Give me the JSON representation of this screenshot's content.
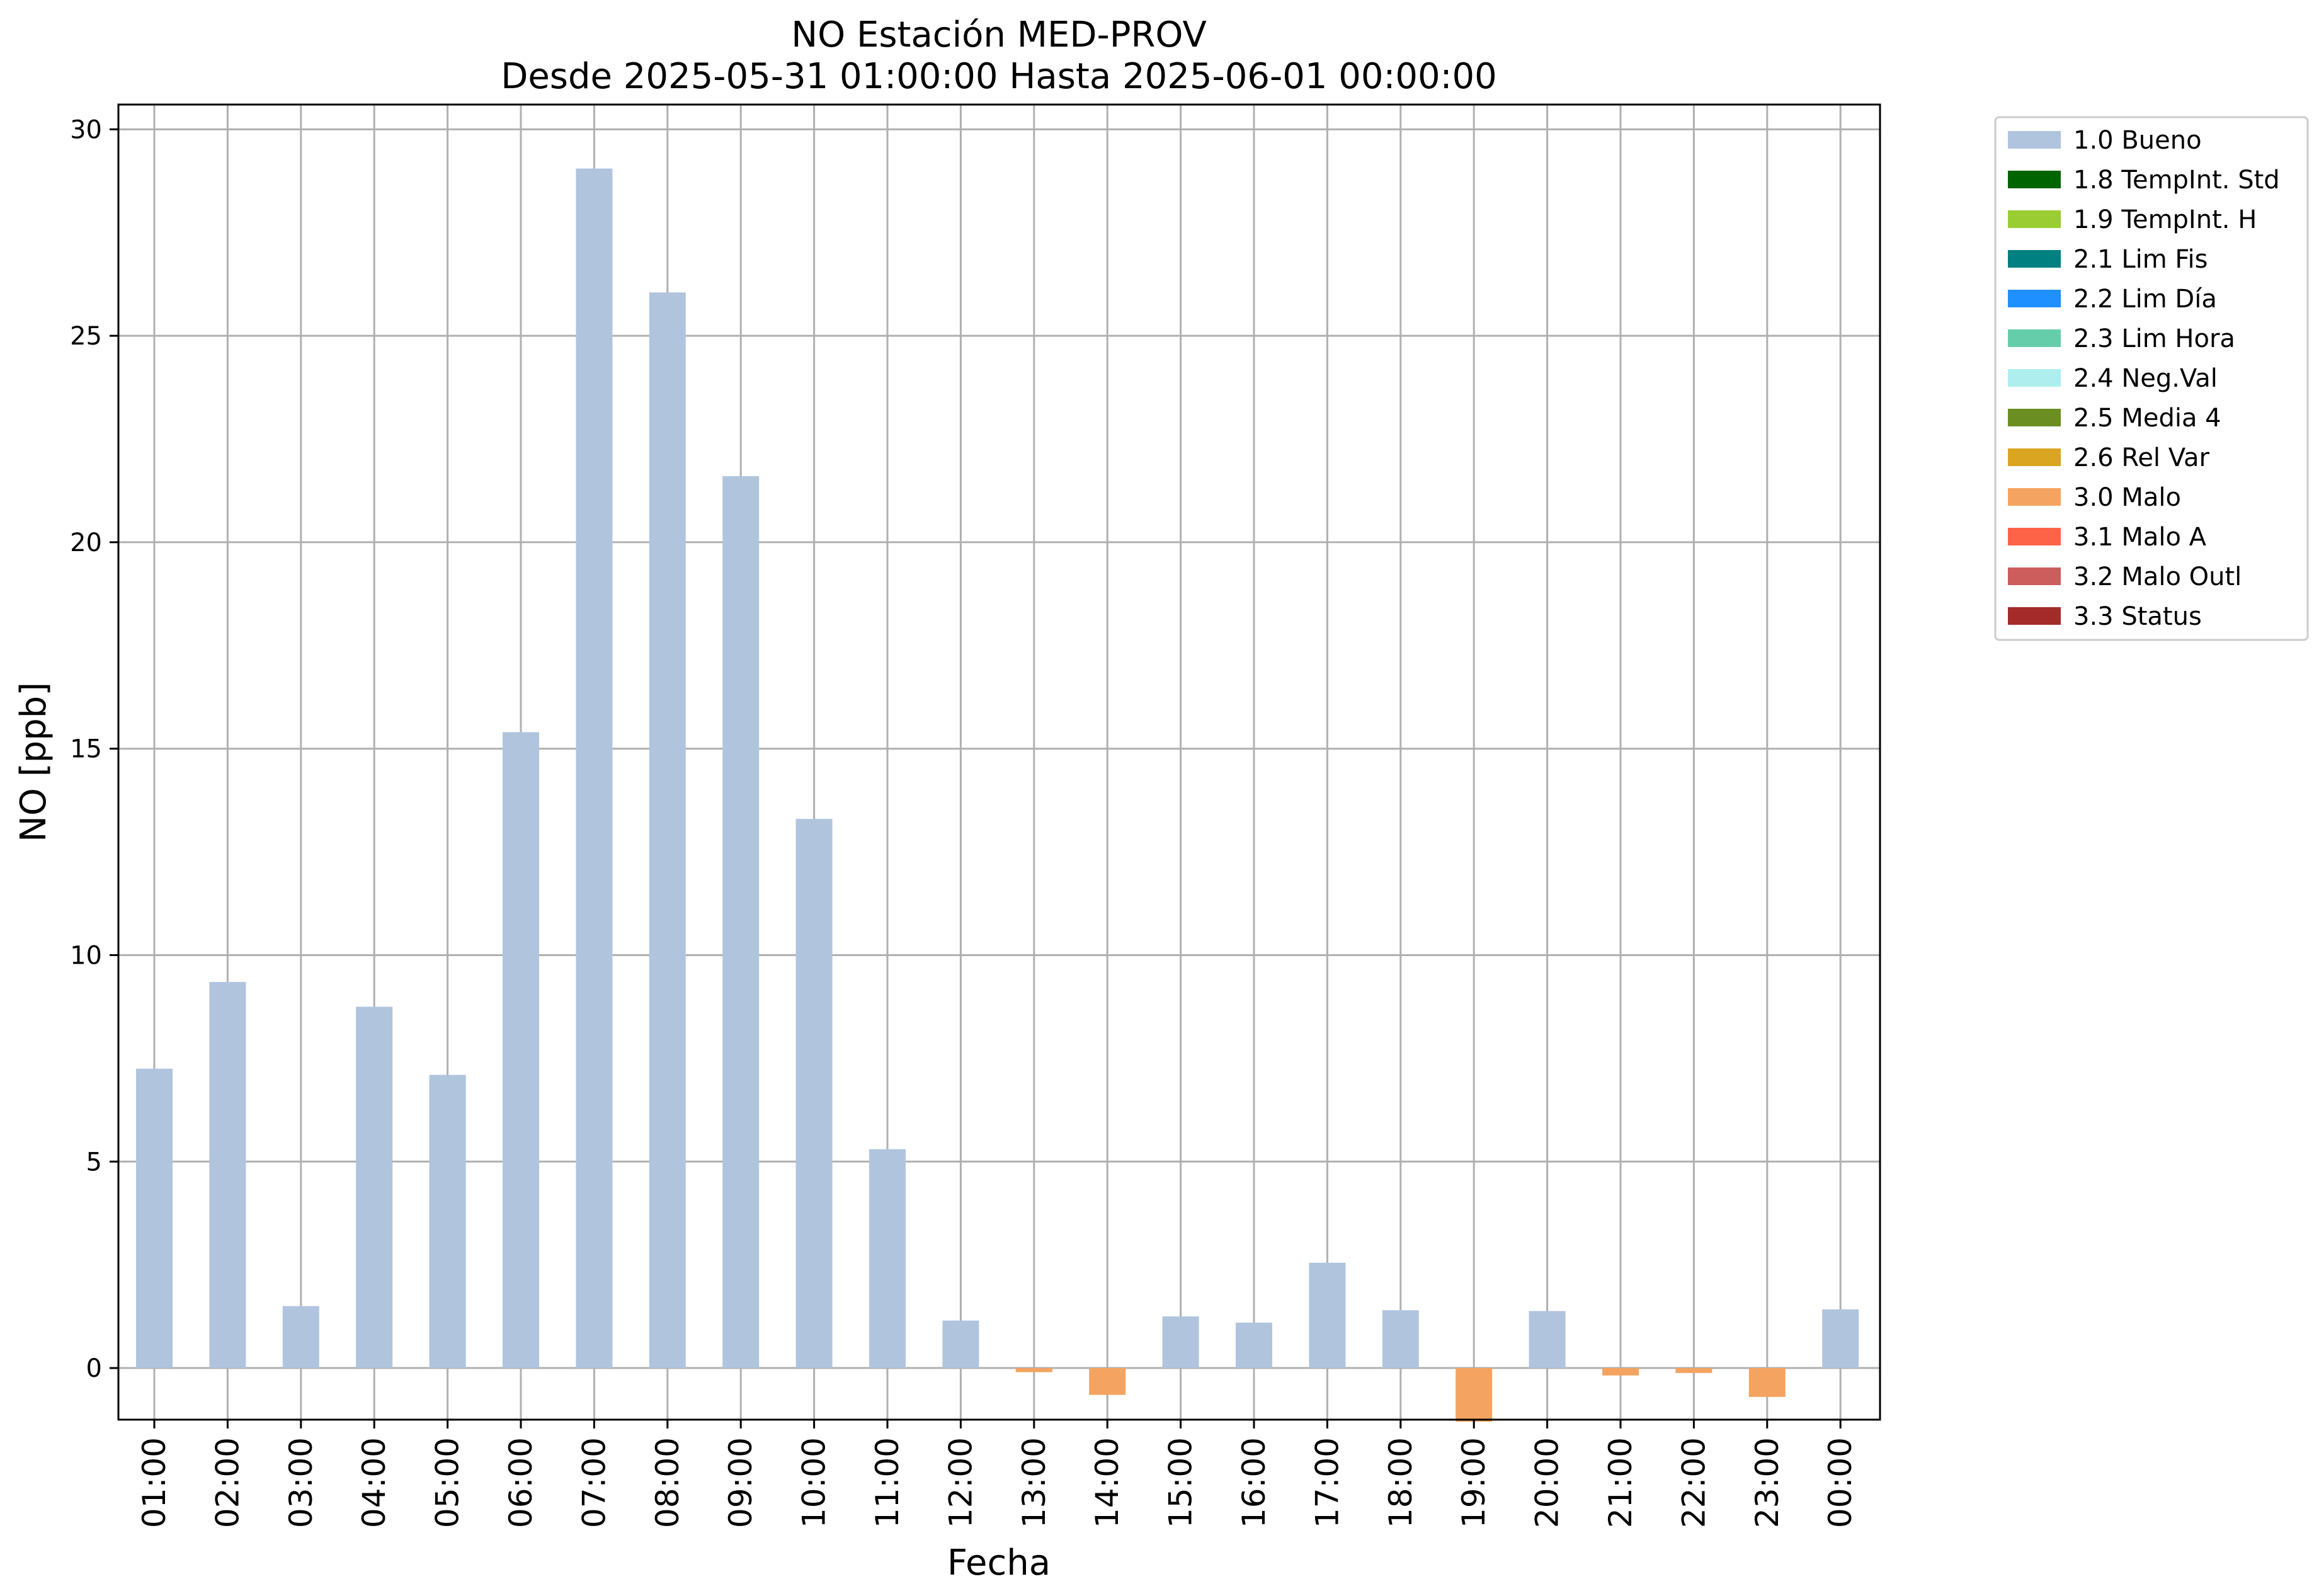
{
  "chart_data": {
    "type": "bar",
    "title": "NO Estación MED-PROV",
    "subtitle": "Desde 2025-05-31 01:00:00 Hasta 2025-06-01 00:00:00",
    "xlabel": "Fecha",
    "ylabel": "NO [ppb]",
    "ylim": [
      -1.25,
      30.6
    ],
    "yticks": [
      0,
      5,
      10,
      15,
      20,
      25,
      30
    ],
    "grid": true,
    "legend_position": "outside-right",
    "categories": [
      "01:00",
      "02:00",
      "03:00",
      "04:00",
      "05:00",
      "06:00",
      "07:00",
      "08:00",
      "09:00",
      "10:00",
      "11:00",
      "12:00",
      "13:00",
      "14:00",
      "15:00",
      "16:00",
      "17:00",
      "18:00",
      "19:00",
      "20:00",
      "21:00",
      "22:00",
      "23:00",
      "00:00"
    ],
    "values": [
      7.25,
      9.35,
      1.5,
      8.75,
      7.1,
      15.4,
      29.05,
      26.05,
      21.6,
      13.3,
      5.3,
      1.15,
      -0.1,
      -0.65,
      1.25,
      1.1,
      2.55,
      1.4,
      -1.3,
      1.38,
      -0.18,
      -0.12,
      -0.7,
      1.42
    ],
    "flags": [
      "1.0 Bueno",
      "1.0 Bueno",
      "1.0 Bueno",
      "1.0 Bueno",
      "1.0 Bueno",
      "1.0 Bueno",
      "1.0 Bueno",
      "1.0 Bueno",
      "1.0 Bueno",
      "1.0 Bueno",
      "1.0 Bueno",
      "1.0 Bueno",
      "3.0 Malo",
      "3.0 Malo",
      "1.0 Bueno",
      "1.0 Bueno",
      "1.0 Bueno",
      "1.0 Bueno",
      "3.0 Malo",
      "1.0 Bueno",
      "3.0 Malo",
      "3.0 Malo",
      "3.0 Malo",
      "1.0 Bueno"
    ],
    "legend": [
      {
        "label": "1.0 Bueno",
        "color": "#b0c4de"
      },
      {
        "label": "1.8 TempInt. Std",
        "color": "#006400"
      },
      {
        "label": "1.9 TempInt. H",
        "color": "#9acd32"
      },
      {
        "label": "2.1 Lim Fis",
        "color": "#008080"
      },
      {
        "label": "2.2 Lim Día",
        "color": "#1e90ff"
      },
      {
        "label": "2.3 Lim Hora",
        "color": "#66cdaa"
      },
      {
        "label": "2.4 Neg.Val",
        "color": "#afeeee"
      },
      {
        "label": "2.5 Media 4",
        "color": "#6b8e23"
      },
      {
        "label": "2.6 Rel Var",
        "color": "#daa520"
      },
      {
        "label": "3.0 Malo",
        "color": "#f4a460"
      },
      {
        "label": "3.1 Malo A",
        "color": "#ff6347"
      },
      {
        "label": "3.2 Malo Outl",
        "color": "#cd5c5c"
      },
      {
        "label": "3.3 Status",
        "color": "#a52a2a"
      }
    ]
  }
}
